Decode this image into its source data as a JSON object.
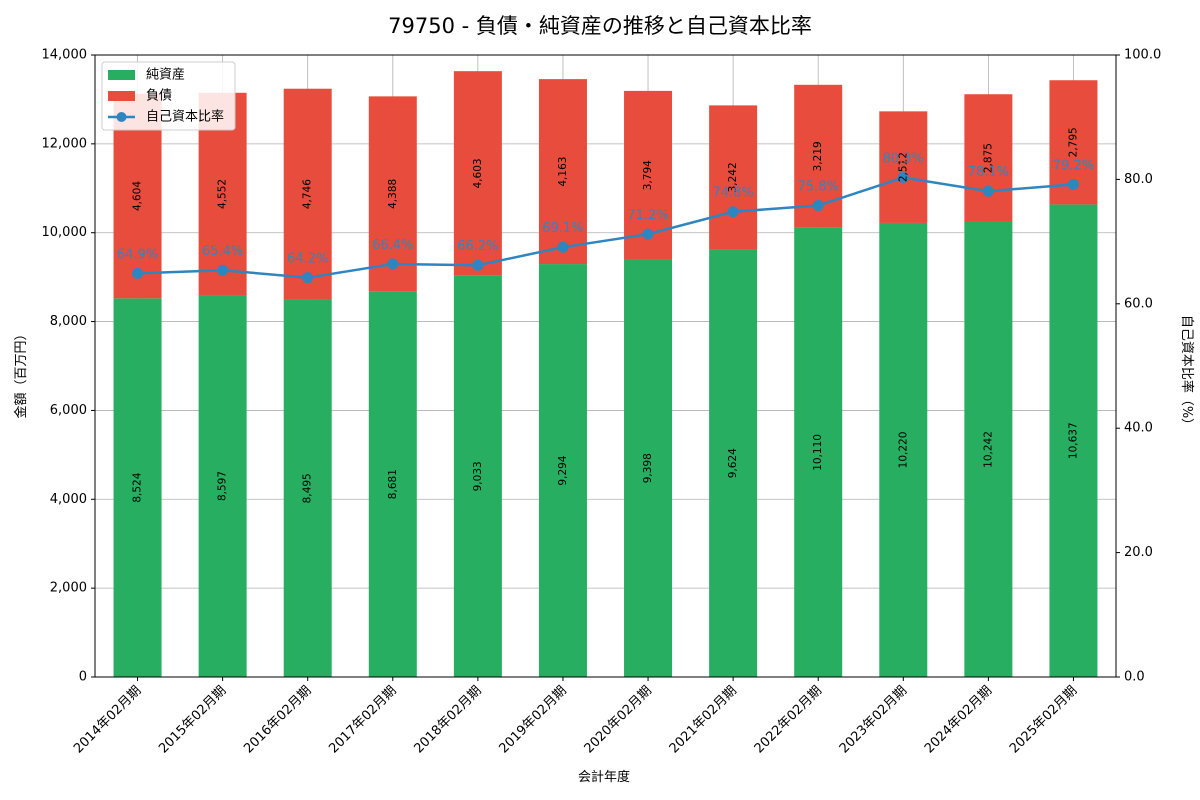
{
  "chart_data": {
    "type": "bar",
    "stacked": true,
    "title": "79750 - 負債・純資産の推移と自己資本比率",
    "xlabel": "会計年度",
    "ylabel": "金額（百万円）",
    "y2label": "自己資本比率（%）",
    "ylim": [
      0,
      14000
    ],
    "y2lim": [
      0,
      100
    ],
    "grid": true,
    "legend_position": "top-left",
    "yticks": [
      "0",
      "2,000",
      "4,000",
      "6,000",
      "8,000",
      "10,000",
      "12,000",
      "14,000"
    ],
    "y2ticks": [
      "0.0",
      "20.0",
      "40.0",
      "60.0",
      "80.0",
      "100.0"
    ],
    "categories": [
      "2014年02月期",
      "2015年02月期",
      "2016年02月期",
      "2017年02月期",
      "2018年02月期",
      "2019年02月期",
      "2020年02月期",
      "2021年02月期",
      "2022年02月期",
      "2023年02月期",
      "2024年02月期",
      "2025年02月期"
    ],
    "series": [
      {
        "name": "純資産",
        "color": "#27ae60",
        "values": [
          8524,
          8597,
          8495,
          8681,
          9033,
          9294,
          9398,
          9624,
          10110,
          10220,
          10242,
          10637
        ],
        "labels": [
          "8,524",
          "8,597",
          "8,495",
          "8,681",
          "9,033",
          "9,294",
          "9,398",
          "9,624",
          "10,110",
          "10,220",
          "10,242",
          "10,637"
        ]
      },
      {
        "name": "負債",
        "color": "#e74c3c",
        "values": [
          4604,
          4552,
          4746,
          4388,
          4603,
          4163,
          3794,
          3242,
          3219,
          2512,
          2875,
          2795
        ],
        "labels": [
          "4,604",
          "4,552",
          "4,746",
          "4,388",
          "4,603",
          "4,163",
          "3,794",
          "3,242",
          "3,219",
          "2,512",
          "2,875",
          "2,795"
        ]
      },
      {
        "name": "自己資本比率",
        "color": "#2e86c1",
        "axis": "right",
        "values": [
          64.9,
          65.4,
          64.2,
          66.4,
          66.2,
          69.1,
          71.2,
          74.8,
          75.8,
          80.3,
          78.1,
          79.2
        ],
        "labels": [
          "64.9%",
          "65.4%",
          "64.2%",
          "66.4%",
          "66.2%",
          "69.1%",
          "71.2%",
          "74.8%",
          "75.8%",
          "80.3%",
          "78.1%",
          "79.2%"
        ]
      }
    ]
  }
}
